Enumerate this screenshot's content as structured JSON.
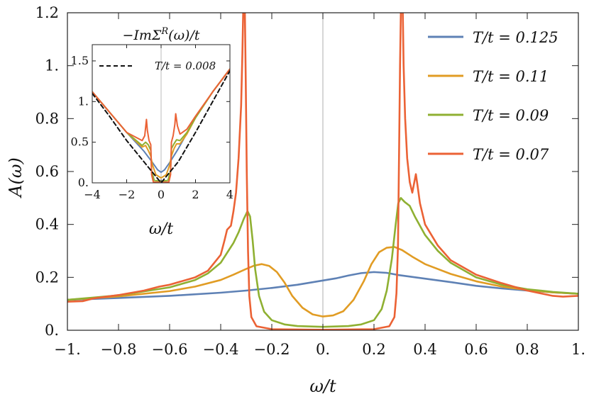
{
  "chart_data": [
    {
      "type": "line",
      "panel": "main",
      "xlabel": "ω/t",
      "ylabel": "A(ω)",
      "xlim": [
        -1,
        1
      ],
      "ylim": [
        0,
        1.2
      ],
      "xticks": [
        {
          "v": -1,
          "label": "−1."
        },
        {
          "v": -0.8,
          "label": "−0.8"
        },
        {
          "v": -0.6,
          "label": "−0.6"
        },
        {
          "v": -0.4,
          "label": "−0.4"
        },
        {
          "v": -0.2,
          "label": "−0.2"
        },
        {
          "v": 0,
          "label": "0."
        },
        {
          "v": 0.2,
          "label": "0.2"
        },
        {
          "v": 0.4,
          "label": "0.4"
        },
        {
          "v": 0.6,
          "label": "0.6"
        },
        {
          "v": 0.8,
          "label": "0.8"
        },
        {
          "v": 1,
          "label": "1."
        }
      ],
      "yticks": [
        {
          "v": 0,
          "label": "0."
        },
        {
          "v": 0.2,
          "label": "0.2"
        },
        {
          "v": 0.4,
          "label": "0.4"
        },
        {
          "v": 0.6,
          "label": "0.6"
        },
        {
          "v": 0.8,
          "label": "0.8"
        },
        {
          "v": 1.0,
          "label": "1."
        },
        {
          "v": 1.2,
          "label": "1.2"
        }
      ],
      "legend_position": "top-right",
      "vertical_reference_line": 0,
      "series": [
        {
          "name": "T/t = 0.125",
          "color": "#5e81b5",
          "points": [
            [
              -1,
              0.115
            ],
            [
              -0.8,
              0.122
            ],
            [
              -0.6,
              0.13
            ],
            [
              -0.4,
              0.142
            ],
            [
              -0.3,
              0.15
            ],
            [
              -0.2,
              0.16
            ],
            [
              -0.1,
              0.172
            ],
            [
              0,
              0.188
            ],
            [
              0.05,
              0.196
            ],
            [
              0.1,
              0.207
            ],
            [
              0.15,
              0.216
            ],
            [
              0.2,
              0.22
            ],
            [
              0.25,
              0.217
            ],
            [
              0.3,
              0.208
            ],
            [
              0.4,
              0.195
            ],
            [
              0.5,
              0.182
            ],
            [
              0.6,
              0.168
            ],
            [
              0.7,
              0.158
            ],
            [
              0.8,
              0.15
            ],
            [
              0.9,
              0.143
            ],
            [
              1,
              0.138
            ]
          ]
        },
        {
          "name": "T/t = 0.11",
          "color": "#e19c24",
          "points": [
            [
              -1,
              0.115
            ],
            [
              -0.8,
              0.128
            ],
            [
              -0.6,
              0.148
            ],
            [
              -0.5,
              0.165
            ],
            [
              -0.4,
              0.19
            ],
            [
              -0.35,
              0.21
            ],
            [
              -0.3,
              0.232
            ],
            [
              -0.27,
              0.244
            ],
            [
              -0.24,
              0.25
            ],
            [
              -0.21,
              0.243
            ],
            [
              -0.18,
              0.22
            ],
            [
              -0.15,
              0.18
            ],
            [
              -0.12,
              0.13
            ],
            [
              -0.08,
              0.085
            ],
            [
              -0.04,
              0.06
            ],
            [
              0,
              0.052
            ],
            [
              0.04,
              0.056
            ],
            [
              0.08,
              0.072
            ],
            [
              0.12,
              0.115
            ],
            [
              0.16,
              0.185
            ],
            [
              0.19,
              0.25
            ],
            [
              0.22,
              0.295
            ],
            [
              0.25,
              0.312
            ],
            [
              0.28,
              0.315
            ],
            [
              0.31,
              0.303
            ],
            [
              0.35,
              0.278
            ],
            [
              0.4,
              0.25
            ],
            [
              0.5,
              0.213
            ],
            [
              0.6,
              0.185
            ],
            [
              0.7,
              0.165
            ],
            [
              0.8,
              0.152
            ],
            [
              0.9,
              0.143
            ],
            [
              1,
              0.138
            ]
          ]
        },
        {
          "name": "T/t = 0.09",
          "color": "#8fb032",
          "points": [
            [
              -1,
              0.115
            ],
            [
              -0.8,
              0.132
            ],
            [
              -0.6,
              0.162
            ],
            [
              -0.5,
              0.19
            ],
            [
              -0.45,
              0.215
            ],
            [
              -0.4,
              0.255
            ],
            [
              -0.37,
              0.3
            ],
            [
              -0.35,
              0.33
            ],
            [
              -0.33,
              0.37
            ],
            [
              -0.31,
              0.42
            ],
            [
              -0.295,
              0.45
            ],
            [
              -0.285,
              0.43
            ],
            [
              -0.275,
              0.34
            ],
            [
              -0.265,
              0.23
            ],
            [
              -0.25,
              0.13
            ],
            [
              -0.23,
              0.07
            ],
            [
              -0.2,
              0.038
            ],
            [
              -0.15,
              0.022
            ],
            [
              -0.1,
              0.016
            ],
            [
              0,
              0.013
            ],
            [
              0.1,
              0.016
            ],
            [
              0.15,
              0.022
            ],
            [
              0.2,
              0.038
            ],
            [
              0.23,
              0.08
            ],
            [
              0.25,
              0.15
            ],
            [
              0.27,
              0.27
            ],
            [
              0.285,
              0.4
            ],
            [
              0.295,
              0.48
            ],
            [
              0.305,
              0.5
            ],
            [
              0.32,
              0.485
            ],
            [
              0.34,
              0.47
            ],
            [
              0.36,
              0.43
            ],
            [
              0.4,
              0.36
            ],
            [
              0.45,
              0.3
            ],
            [
              0.5,
              0.255
            ],
            [
              0.6,
              0.2
            ],
            [
              0.7,
              0.172
            ],
            [
              0.8,
              0.155
            ],
            [
              0.9,
              0.145
            ],
            [
              1,
              0.138
            ]
          ]
        },
        {
          "name": "T/t = 0.07",
          "color": "#eb6235",
          "points": [
            [
              -1,
              0.108
            ],
            [
              -0.94,
              0.11
            ],
            [
              -0.9,
              0.12
            ],
            [
              -0.8,
              0.133
            ],
            [
              -0.7,
              0.15
            ],
            [
              -0.64,
              0.165
            ],
            [
              -0.6,
              0.172
            ],
            [
              -0.5,
              0.2
            ],
            [
              -0.45,
              0.225
            ],
            [
              -0.4,
              0.285
            ],
            [
              -0.385,
              0.34
            ],
            [
              -0.375,
              0.38
            ],
            [
              -0.36,
              0.395
            ],
            [
              -0.35,
              0.45
            ],
            [
              -0.34,
              0.52
            ],
            [
              -0.33,
              0.65
            ],
            [
              -0.32,
              0.85
            ],
            [
              -0.315,
              1.05
            ],
            [
              -0.312,
              1.2
            ],
            [
              -0.309,
              1.32
            ],
            [
              -0.306,
              1.25
            ],
            [
              -0.302,
              0.95
            ],
            [
              -0.298,
              0.6
            ],
            [
              -0.293,
              0.3
            ],
            [
              -0.288,
              0.13
            ],
            [
              -0.28,
              0.05
            ],
            [
              -0.26,
              0.015
            ],
            [
              -0.2,
              0.004
            ],
            [
              0,
              0.002
            ],
            [
              0.2,
              0.004
            ],
            [
              0.26,
              0.015
            ],
            [
              0.28,
              0.05
            ],
            [
              0.288,
              0.14
            ],
            [
              0.294,
              0.32
            ],
            [
              0.298,
              0.65
            ],
            [
              0.302,
              1.0
            ],
            [
              0.306,
              1.25
            ],
            [
              0.309,
              1.35
            ],
            [
              0.312,
              1.25
            ],
            [
              0.316,
              1.0
            ],
            [
              0.322,
              0.8
            ],
            [
              0.33,
              0.65
            ],
            [
              0.34,
              0.56
            ],
            [
              0.35,
              0.52
            ],
            [
              0.358,
              0.56
            ],
            [
              0.364,
              0.59
            ],
            [
              0.37,
              0.55
            ],
            [
              0.38,
              0.48
            ],
            [
              0.4,
              0.4
            ],
            [
              0.45,
              0.32
            ],
            [
              0.5,
              0.265
            ],
            [
              0.6,
              0.21
            ],
            [
              0.7,
              0.178
            ],
            [
              0.8,
              0.15
            ],
            [
              0.9,
              0.13
            ],
            [
              0.94,
              0.127
            ],
            [
              1,
              0.13
            ]
          ]
        }
      ]
    },
    {
      "type": "line",
      "panel": "inset",
      "title": "−ImΣR(ω)/t",
      "title_parts": {
        "prefix": "−ImΣ",
        "sup": "R",
        "suffix": "(ω)/t"
      },
      "xlabel": "ω/t",
      "xlim": [
        -4,
        4
      ],
      "ylim": [
        0,
        1.7
      ],
      "xticks": [
        {
          "v": -4,
          "label": "−4"
        },
        {
          "v": -2,
          "label": "−2"
        },
        {
          "v": 0,
          "label": "0"
        },
        {
          "v": 2,
          "label": "2"
        },
        {
          "v": 4,
          "label": "4"
        }
      ],
      "yticks": [
        {
          "v": 0,
          "label": "0."
        },
        {
          "v": 0.5,
          "label": "0.5"
        },
        {
          "v": 1.0,
          "label": "1."
        },
        {
          "v": 1.5,
          "label": "1.5"
        }
      ],
      "legend_position": "top-right",
      "vertical_reference_line": 0,
      "series": [
        {
          "name": "T/t = 0.125",
          "color": "#5e81b5",
          "points": [
            [
              -4,
              1.12
            ],
            [
              -3,
              0.87
            ],
            [
              -2,
              0.62
            ],
            [
              -1,
              0.39
            ],
            [
              -0.5,
              0.25
            ],
            [
              -0.2,
              0.16
            ],
            [
              0,
              0.13
            ],
            [
              0.2,
              0.16
            ],
            [
              0.5,
              0.25
            ],
            [
              1,
              0.42
            ],
            [
              2,
              0.8
            ],
            [
              3,
              1.12
            ],
            [
              4,
              1.4
            ]
          ]
        },
        {
          "name": "T/t = 0.11",
          "color": "#e19c24",
          "points": [
            [
              -4,
              1.12
            ],
            [
              -3,
              0.87
            ],
            [
              -2,
              0.62
            ],
            [
              -1.1,
              0.44
            ],
            [
              -0.9,
              0.46
            ],
            [
              -0.75,
              0.4
            ],
            [
              -0.6,
              0.33
            ],
            [
              -0.5,
              0.22
            ],
            [
              -0.3,
              0.1
            ],
            [
              0,
              0.06
            ],
            [
              0.3,
              0.1
            ],
            [
              0.5,
              0.22
            ],
            [
              0.6,
              0.33
            ],
            [
              0.75,
              0.42
            ],
            [
              0.9,
              0.48
            ],
            [
              1.1,
              0.48
            ],
            [
              1.5,
              0.6
            ],
            [
              2,
              0.8
            ],
            [
              3,
              1.12
            ],
            [
              4,
              1.4
            ]
          ]
        },
        {
          "name": "T/t = 0.09",
          "color": "#8fb032",
          "points": [
            [
              -4,
              1.12
            ],
            [
              -3,
              0.87
            ],
            [
              -2,
              0.62
            ],
            [
              -1.1,
              0.46
            ],
            [
              -0.9,
              0.5
            ],
            [
              -0.75,
              0.47
            ],
            [
              -0.6,
              0.4
            ],
            [
              -0.55,
              0.15
            ],
            [
              -0.4,
              0.03
            ],
            [
              0,
              0.02
            ],
            [
              0.4,
              0.03
            ],
            [
              0.55,
              0.15
            ],
            [
              0.6,
              0.42
            ],
            [
              0.75,
              0.48
            ],
            [
              0.9,
              0.53
            ],
            [
              1.1,
              0.52
            ],
            [
              1.5,
              0.62
            ],
            [
              2,
              0.8
            ],
            [
              3,
              1.12
            ],
            [
              4,
              1.4
            ]
          ]
        },
        {
          "name": "T/t = 0.07",
          "color": "#eb6235",
          "points": [
            [
              -4,
              1.12
            ],
            [
              -3,
              0.87
            ],
            [
              -2,
              0.62
            ],
            [
              -1.1,
              0.52
            ],
            [
              -0.95,
              0.58
            ],
            [
              -0.85,
              0.78
            ],
            [
              -0.8,
              0.65
            ],
            [
              -0.7,
              0.52
            ],
            [
              -0.6,
              0.47
            ],
            [
              -0.55,
              0.1
            ],
            [
              -0.45,
              0.01
            ],
            [
              0,
              0.005
            ],
            [
              0.45,
              0.01
            ],
            [
              0.55,
              0.1
            ],
            [
              0.6,
              0.5
            ],
            [
              0.7,
              0.58
            ],
            [
              0.8,
              0.72
            ],
            [
              0.85,
              0.85
            ],
            [
              0.95,
              0.7
            ],
            [
              1.1,
              0.6
            ],
            [
              1.5,
              0.66
            ],
            [
              2,
              0.82
            ],
            [
              3,
              1.12
            ],
            [
              4,
              1.4
            ]
          ]
        },
        {
          "name": "T/t = 0.008",
          "color": "#111111",
          "dashed": true,
          "points": [
            [
              -4,
              1.1
            ],
            [
              -3,
              0.82
            ],
            [
              -2,
              0.52
            ],
            [
              -1,
              0.26
            ],
            [
              -0.5,
              0.13
            ],
            [
              0,
              0.0
            ],
            [
              0.5,
              0.13
            ],
            [
              1,
              0.26
            ],
            [
              2,
              0.62
            ],
            [
              3,
              1.0
            ],
            [
              4,
              1.38
            ]
          ]
        }
      ]
    }
  ]
}
